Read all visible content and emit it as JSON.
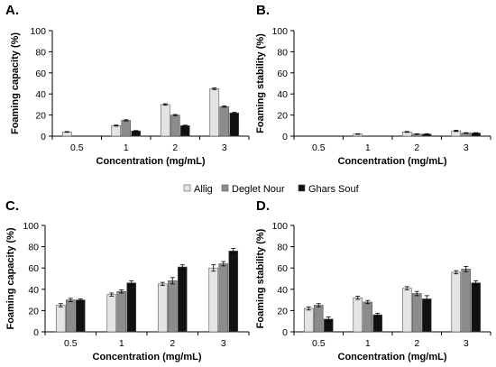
{
  "colors": {
    "Allig": "#e4e4e4",
    "Deglet Nour": "#8c8c8c",
    "Ghars Souf": "#111111"
  },
  "legend": {
    "position": "center",
    "entries": [
      "Allig",
      "Deglet Nour",
      "Ghars Souf"
    ]
  },
  "chart_data": [
    {
      "type": "bar",
      "panel": "A.",
      "ylabel": "Foaming capacity (%)",
      "xlabel": "Concentration (mg/mL)",
      "categories": [
        "0.5",
        "1",
        "2",
        "3"
      ],
      "ylim": [
        0,
        100
      ],
      "yticks": [
        "0",
        "20",
        "40",
        "60",
        "80",
        "100"
      ],
      "series": [
        {
          "name": "Allig",
          "values": [
            4,
            10,
            30,
            45
          ],
          "errors": [
            0.3,
            0.5,
            0.7,
            0.8
          ]
        },
        {
          "name": "Deglet Nour",
          "values": [
            0,
            15,
            20,
            28
          ],
          "errors": [
            0,
            0.6,
            0.6,
            0.6
          ]
        },
        {
          "name": "Ghars Souf",
          "values": [
            0,
            5,
            10,
            22
          ],
          "errors": [
            0,
            0.3,
            0.4,
            0.6
          ]
        }
      ]
    },
    {
      "type": "bar",
      "panel": "B.",
      "ylabel": "Foaming stability (%)",
      "xlabel": "Concentration (mg/mL)",
      "categories": [
        "0.5",
        "1",
        "2",
        "3"
      ],
      "ylim": [
        0,
        100
      ],
      "yticks": [
        "0",
        "20",
        "40",
        "60",
        "80",
        "100"
      ],
      "series": [
        {
          "name": "Allig",
          "values": [
            0,
            2,
            4,
            5
          ],
          "errors": [
            0,
            0.3,
            0.4,
            0.6
          ]
        },
        {
          "name": "Deglet Nour",
          "values": [
            0,
            0,
            2,
            3
          ],
          "errors": [
            0,
            0,
            0.3,
            0.3
          ]
        },
        {
          "name": "Ghars Souf",
          "values": [
            0,
            0,
            2,
            3
          ],
          "errors": [
            0,
            0,
            0.3,
            0.3
          ]
        }
      ]
    },
    {
      "type": "bar",
      "panel": "C.",
      "ylabel": "Foaming capacity (%)",
      "xlabel": "Concentration (mg/mL)",
      "categories": [
        "0.5",
        "1",
        "2",
        "3"
      ],
      "ylim": [
        0,
        100
      ],
      "yticks": [
        "0",
        "20",
        "40",
        "60",
        "80",
        "100"
      ],
      "series": [
        {
          "name": "Allig",
          "values": [
            25,
            35,
            45,
            60
          ],
          "errors": [
            1.5,
            1.5,
            1.5,
            3
          ]
        },
        {
          "name": "Deglet Nour",
          "values": [
            30,
            38,
            48,
            64
          ],
          "errors": [
            1.5,
            1.5,
            3,
            2
          ]
        },
        {
          "name": "Ghars Souf",
          "values": [
            30,
            46,
            61,
            76
          ],
          "errors": [
            1,
            2,
            2,
            2.5
          ]
        }
      ]
    },
    {
      "type": "bar",
      "panel": "D.",
      "ylabel": "Foaming stability (%)",
      "xlabel": "Concentration (mg/mL)",
      "categories": [
        "0.5",
        "1",
        "2",
        "3"
      ],
      "ylim": [
        0,
        100
      ],
      "yticks": [
        "0",
        "20",
        "40",
        "60",
        "80",
        "100"
      ],
      "series": [
        {
          "name": "Allig",
          "values": [
            22,
            32,
            41,
            56
          ],
          "errors": [
            1.5,
            1.5,
            1.5,
            1.5
          ]
        },
        {
          "name": "Deglet Nour",
          "values": [
            25,
            28,
            36,
            59
          ],
          "errors": [
            1.5,
            1.5,
            2,
            2.5
          ]
        },
        {
          "name": "Ghars Souf",
          "values": [
            12,
            16,
            31,
            46
          ],
          "errors": [
            2,
            1.5,
            3,
            2
          ]
        }
      ]
    }
  ]
}
